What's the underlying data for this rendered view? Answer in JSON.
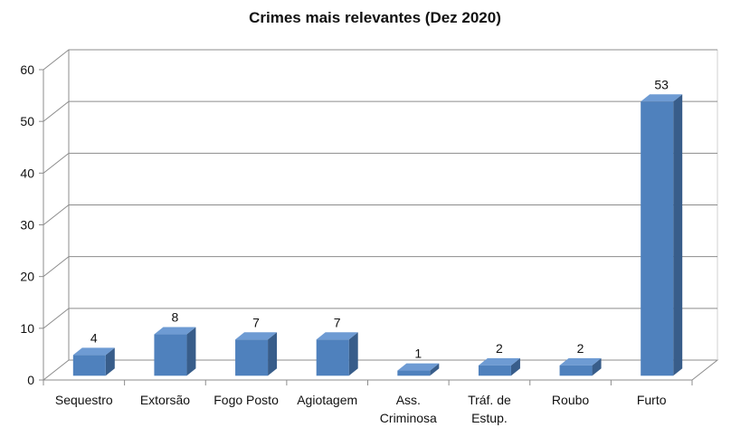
{
  "chart_data": {
    "type": "bar",
    "title": "Crimes mais relevantes (Dez 2020)",
    "categories": [
      [
        "Sequestro"
      ],
      [
        "Extorsão"
      ],
      [
        "Fogo Posto"
      ],
      [
        "Agiotagem"
      ],
      [
        "Ass.",
        "Criminosa"
      ],
      [
        "Tráf. de",
        "Estup."
      ],
      [
        "Roubo"
      ],
      [
        "Furto"
      ]
    ],
    "values": [
      4,
      8,
      7,
      7,
      1,
      2,
      2,
      53
    ],
    "ylim": [
      0,
      60
    ],
    "yticks": [
      0,
      10,
      20,
      30,
      40,
      50,
      60
    ],
    "grid": true,
    "style3d": true,
    "bar_color": "#4F81BD",
    "bar_top_color": "#6E9BD3",
    "bar_side_color": "#385D8A",
    "grid_color": "#8C8C8C"
  }
}
